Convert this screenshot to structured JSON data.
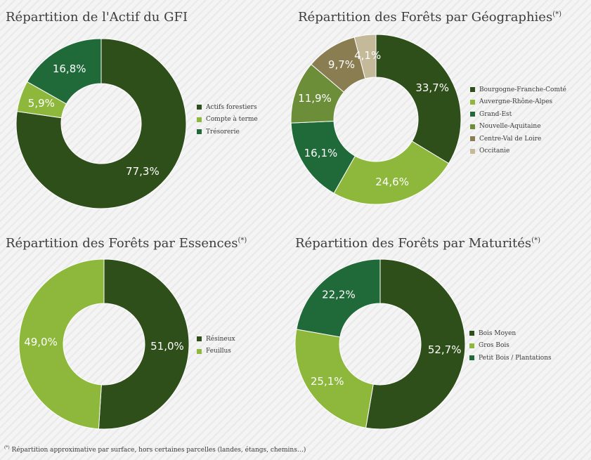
{
  "colors": {
    "dark_green": "#2f4f1a",
    "light_green": "#8db83c",
    "mid_green": "#206a3a",
    "olive_green": "#6c8e39",
    "brown_olive": "#8a7d52",
    "beige": "#c4b998"
  },
  "chart_data": [
    {
      "type": "pie",
      "title": "Répartition de l'Actif du GFI",
      "title_mark": "",
      "categories": [
        "Actifs forestiers",
        "Compte à terme",
        "Trésorerie"
      ],
      "values": [
        77.3,
        5.9,
        16.8
      ],
      "labels": [
        "77,3%",
        "5,9%",
        "16,8%"
      ],
      "colors": [
        "#2f4f1a",
        "#8db83c",
        "#206a3a"
      ],
      "legend_position": "right"
    },
    {
      "type": "pie",
      "title": "Répartition des Forêts par Géographies",
      "title_mark": "(*)",
      "categories": [
        "Bourgogne-Franche-Comté",
        "Auvergne-Rhône-Alpes",
        "Grand-Est",
        "Nouvelle-Aquitaine",
        "Centre-Val de Loire",
        "Occitanie"
      ],
      "values": [
        33.7,
        24.6,
        16.1,
        11.9,
        9.7,
        4.1
      ],
      "labels": [
        "33,7%",
        "24,6%",
        "16,1%",
        "11,9%",
        "9,7%",
        "4,1%"
      ],
      "colors": [
        "#2f4f1a",
        "#8db83c",
        "#206a3a",
        "#6c8e39",
        "#8a7d52",
        "#c4b998"
      ],
      "legend_position": "right"
    },
    {
      "type": "pie",
      "title": "Répartition des Forêts par Essences",
      "title_mark": "(*)",
      "categories": [
        "Résineux",
        "Feuillus"
      ],
      "values": [
        51.0,
        49.0
      ],
      "labels": [
        "51,0%",
        "49,0%"
      ],
      "colors": [
        "#2f4f1a",
        "#8db83c"
      ],
      "legend_position": "right"
    },
    {
      "type": "pie",
      "title": "Répartition des Forêts par Maturités",
      "title_mark": "(*)",
      "categories": [
        "Bois Moyen",
        "Gros Bois",
        "Petit Bois / Plantations"
      ],
      "values": [
        52.7,
        25.1,
        22.2
      ],
      "labels": [
        "52,7%",
        "25,1%",
        "22,2%"
      ],
      "colors": [
        "#2f4f1a",
        "#8db83c",
        "#206a3a"
      ],
      "legend_position": "right"
    }
  ],
  "footnote": {
    "mark": "(*)",
    "text": " Répartition approximative par surface, hors certaines parcelles (landes, étangs, chemins…)"
  }
}
